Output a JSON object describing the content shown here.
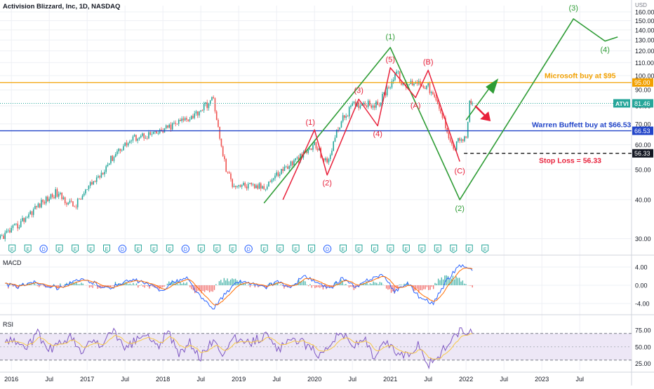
{
  "header": {
    "title": "Activision Blizzard, Inc, 1D, NASDAQ",
    "currency": "USD"
  },
  "colors": {
    "up": "#26a69a",
    "down": "#ef5350",
    "green_wave": "#2e9c35",
    "red_wave": "#e8213b",
    "orange_line": "#f2a000",
    "blue_line": "#2245c9",
    "dotted_line": "#26a69a",
    "macd_line": "#2962ff",
    "signal_line": "#ff6d00",
    "rsi_line": "#7e57c2",
    "rsi_band": "#ede7f6",
    "grid": "#eef0f4"
  },
  "icons": {
    "earnings_badge": "E",
    "dividend_badge": "D",
    "arrow_up": "green-up-arrow",
    "arrow_down": "red-down-arrow"
  },
  "chart_data": [
    {
      "type": "candlestick",
      "name": "price",
      "x_axis": {
        "labels": [
          "2016",
          "Jul",
          "2017",
          "Jul",
          "2018",
          "Jul",
          "2019",
          "Jul",
          "2020",
          "Jul",
          "2021",
          "Jul",
          "2022",
          "Jul",
          "2023",
          "Jul"
        ],
        "range": [
          "2015-10",
          "2023-12"
        ]
      },
      "y_axis": {
        "ticks": [
          "30.00",
          "40.00",
          "50.00",
          "60.00",
          "70.00",
          "80.00",
          "90.00",
          "100.00",
          "110.00",
          "120.00",
          "130.00",
          "140.00",
          "150.00",
          "160.00"
        ],
        "range": [
          26,
          165
        ],
        "scale": "log",
        "side": "right"
      },
      "price_path": [
        [
          "2015-10",
          29
        ],
        [
          "2016-02",
          33
        ],
        [
          "2016-05",
          38
        ],
        [
          "2016-08",
          42
        ],
        [
          "2016-11",
          38
        ],
        [
          "2017-03",
          48
        ],
        [
          "2017-06",
          58
        ],
        [
          "2017-09",
          64
        ],
        [
          "2017-12",
          65
        ],
        [
          "2018-03",
          70
        ],
        [
          "2018-06",
          75
        ],
        [
          "2018-09",
          84
        ],
        [
          "2018-10",
          62
        ],
        [
          "2018-11",
          50
        ],
        [
          "2018-12",
          45
        ],
        [
          "2019-03",
          44
        ],
        [
          "2019-05",
          44
        ],
        [
          "2019-08",
          50
        ],
        [
          "2019-11",
          55
        ],
        [
          "2020-01",
          60
        ],
        [
          "2020-03",
          52
        ],
        [
          "2020-05",
          70
        ],
        [
          "2020-07",
          80
        ],
        [
          "2020-09",
          82
        ],
        [
          "2020-11",
          80
        ],
        [
          "2021-01",
          94
        ],
        [
          "2021-02",
          103
        ],
        [
          "2021-03",
          92
        ],
        [
          "2021-05",
          96
        ],
        [
          "2021-07",
          92
        ],
        [
          "2021-09",
          76
        ],
        [
          "2021-11",
          58
        ],
        [
          "2021-12",
          63
        ],
        [
          "2022-01",
          62
        ],
        [
          "2022-01-18",
          82
        ],
        [
          "2022-02",
          81.46
        ]
      ],
      "last_price": {
        "label": "ATVI",
        "value": "81.46"
      },
      "levels": [
        {
          "name": "microsoft",
          "value": "95.00",
          "color": "#f2a000",
          "annotation": "Microsoft buy at $95"
        },
        {
          "name": "buffett",
          "value": "66.53",
          "color": "#2245c9",
          "annotation": "Warren Buffett buy at $66.53"
        },
        {
          "name": "stop_loss",
          "value": "56.33",
          "color": "#000000",
          "annotation": "Stop Loss = 56.33"
        }
      ],
      "wave_labels": {
        "green": [
          "(1)",
          "(2)",
          "(3)",
          "(4)"
        ],
        "red": [
          "(1)",
          "(2)",
          "(3)",
          "(4)",
          "(5)",
          "(A)",
          "(B)",
          "(C)"
        ]
      },
      "green_wave_points": [
        [
          "2019-05",
          39
        ],
        [
          "2021-01",
          123
        ],
        [
          "2021-12",
          40
        ],
        [
          "2023-06",
          152
        ],
        [
          "2023-11",
          129
        ],
        [
          "2024-01",
          133
        ]
      ],
      "red_wave_points": [
        [
          "2019-08",
          40
        ],
        [
          "2020-01",
          67
        ],
        [
          "2020-03",
          48
        ],
        [
          "2020-08",
          84
        ],
        [
          "2020-11",
          69
        ],
        [
          "2021-01",
          106
        ],
        [
          "2021-05",
          85
        ],
        [
          "2021-07",
          104
        ],
        [
          "2021-12",
          53
        ]
      ],
      "projection_points": [
        [
          "2022-01",
          72
        ],
        [
          "2022-05",
          93
        ]
      ],
      "event_markers": [
        "E",
        "E",
        "D",
        "E",
        "E",
        "E",
        "E",
        "D",
        "E",
        "E",
        "E",
        "D",
        "E",
        "E",
        "E",
        "D",
        "E",
        "E",
        "E",
        "E",
        "D",
        "E",
        "E",
        "E",
        "E",
        "E",
        "E",
        "E",
        "E",
        "E",
        "E"
      ]
    },
    {
      "type": "line",
      "name": "MACD",
      "title": "MACD",
      "y_axis": {
        "ticks": [
          "4.00",
          "0.00",
          "-4.00"
        ],
        "range": [
          -6,
          6
        ]
      },
      "series": [
        {
          "name": "",
          "values": [
            0.3,
            -0.4,
            0.8,
            0.2,
            -0.6,
            0.5,
            1.2,
            0.4,
            -0.8,
            0.6,
            1.1,
            0.2,
            -1.2,
            0.7,
            1.6,
            -2.4,
            -5.2,
            -1.8,
            0.9,
            0.4,
            -0.6,
            1.0,
            -0.8,
            2.2,
            0.5,
            -0.9,
            1.7,
            -0.6,
            1.2,
            2.4,
            -1.3,
            0.5,
            -2.8,
            -3.9,
            0.8,
            4.6,
            3.2
          ]
        }
      ]
    },
    {
      "type": "line",
      "name": "RSI",
      "title": "RSI",
      "y_axis": {
        "ticks": [
          "75.00",
          "50.00",
          "25.00"
        ],
        "range": [
          15,
          95
        ]
      },
      "bands": [
        30,
        70
      ],
      "series": [
        {
          "name": "",
          "values": [
            62,
            58,
            48,
            70,
            45,
            55,
            66,
            40,
            60,
            52,
            78,
            44,
            60,
            68,
            50,
            72,
            38,
            56,
            34,
            58,
            42,
            64,
            52,
            60,
            68,
            46,
            55,
            62,
            48,
            38,
            58,
            72,
            50,
            64,
            30,
            58,
            42,
            36,
            55,
            24,
            38,
            60,
            74,
            70
          ]
        }
      ]
    }
  ]
}
